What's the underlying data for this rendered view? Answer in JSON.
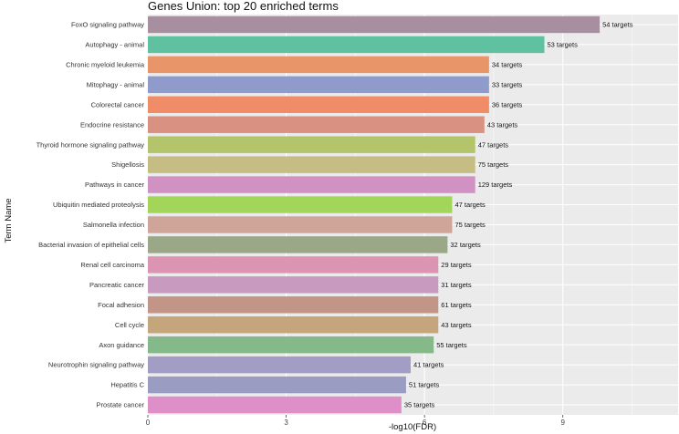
{
  "chart_data": {
    "type": "bar",
    "orientation": "horizontal",
    "title": "Genes Union: top 20 enriched terms",
    "xlabel": "-log10(FDR)",
    "ylabel": "Term Name",
    "xlim": [
      0,
      11.5
    ],
    "xticks": [
      0,
      3,
      6,
      9
    ],
    "grid": true,
    "legend": "none",
    "categories": [
      "FoxO signaling pathway",
      "Autophagy - animal",
      "Chronic myeloid leukemia",
      "Mitophagy - animal",
      "Colorectal cancer",
      "Endocrine resistance",
      "Thyroid hormone signaling pathway",
      "Shigellosis",
      "Pathways in cancer",
      "Ubiquitin mediated proteolysis",
      "Salmonella infection",
      "Bacterial invasion of epithelial cells",
      "Renal cell carcinoma",
      "Pancreatic cancer",
      "Focal adhesion",
      "Cell cycle",
      "Axon guidance",
      "Neurotrophin signaling pathway",
      "Hepatitis C",
      "Prostate cancer"
    ],
    "values": [
      9.8,
      8.6,
      7.4,
      7.4,
      7.4,
      7.3,
      7.1,
      7.1,
      7.1,
      6.6,
      6.6,
      6.5,
      6.3,
      6.3,
      6.3,
      6.3,
      6.2,
      5.7,
      5.6,
      5.5
    ],
    "data_labels": [
      "54 targets",
      "53 targets",
      "34 targets",
      "33 targets",
      "36 targets",
      "43 targets",
      "47 targets",
      "75 targets",
      "129 targets",
      "47 targets",
      "75 targets",
      "32 targets",
      "29 targets",
      "31 targets",
      "61 targets",
      "43 targets",
      "55 targets",
      "41 targets",
      "51 targets",
      "35 targets"
    ],
    "colors": [
      "#a88f9f",
      "#5fc1a0",
      "#e8956a",
      "#8f9ccb",
      "#f18c68",
      "#d99182",
      "#b3c46b",
      "#c6bd84",
      "#cf92c3",
      "#a3d55a",
      "#cfa59a",
      "#9aa887",
      "#db95b2",
      "#c89ac0",
      "#c39587",
      "#c5a57b",
      "#85b98a",
      "#a29dc5",
      "#9a9cc2",
      "#df8fc8"
    ]
  }
}
